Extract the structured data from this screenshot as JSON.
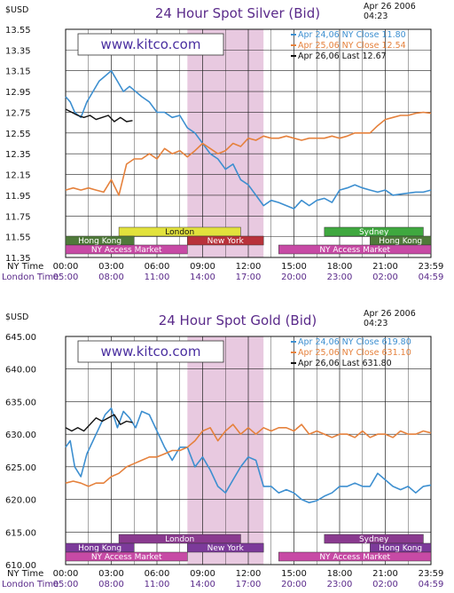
{
  "chart_data": [
    {
      "id": "silver",
      "type": "line",
      "title": "24 Hour Spot Silver (Bid)",
      "currency_label": "$USD",
      "date_line1": "Apr 26 2006",
      "date_line2": "04:23",
      "watermark": "www.kitco.com",
      "ylim": [
        11.35,
        13.55
      ],
      "y_ticks": [
        "13.55",
        "13.35",
        "13.15",
        "12.95",
        "12.75",
        "12.55",
        "12.35",
        "12.15",
        "11.95",
        "11.75",
        "11.55",
        "11.35"
      ],
      "xlim": [
        0,
        24
      ],
      "x_row_labels": [
        "NY Time",
        "London Time"
      ],
      "ny_ticks": [
        "00:00",
        "03:00",
        "06:00",
        "09:00",
        "12:00",
        "15:00",
        "18:00",
        "21:00",
        "23:59"
      ],
      "london_ticks": [
        "05:00",
        "08:00",
        "11:00",
        "14:00",
        "17:00",
        "20:00",
        "23:00",
        "02:00",
        "04:59"
      ],
      "shaded_window": [
        8,
        13
      ],
      "colors": {
        "apr24": "#3d8fd0",
        "apr25": "#e5813c",
        "apr26": "#111111",
        "shade": "#e8c9e0"
      },
      "series": [
        {
          "key": "apr24",
          "name": "Apr 24,06 NY Close 11.80",
          "x": [
            0,
            0.3,
            0.6,
            1,
            1.4,
            1.8,
            2.2,
            2.6,
            3,
            3.4,
            3.8,
            4.2,
            4.6,
            5,
            5.5,
            6,
            6.5,
            7,
            7.5,
            8,
            8.5,
            9,
            9.5,
            10,
            10.5,
            11,
            11.5,
            12,
            12.5,
            13,
            13.5,
            14,
            14.5,
            15,
            15.5,
            16,
            16.5,
            17,
            17.5,
            18,
            18.5,
            19,
            19.5,
            20,
            20.5,
            21,
            21.5,
            22,
            22.5,
            23,
            23.5,
            24
          ],
          "y": [
            12.9,
            12.85,
            12.75,
            12.7,
            12.85,
            12.95,
            13.05,
            13.1,
            13.15,
            13.05,
            12.95,
            13.0,
            12.95,
            12.9,
            12.85,
            12.75,
            12.75,
            12.7,
            12.72,
            12.6,
            12.55,
            12.45,
            12.35,
            12.3,
            12.2,
            12.25,
            12.1,
            12.05,
            11.95,
            11.85,
            11.9,
            11.88,
            11.85,
            11.82,
            11.9,
            11.85,
            11.9,
            11.92,
            11.88,
            12.0,
            12.02,
            12.05,
            12.02,
            12.0,
            11.98,
            12.0,
            11.95,
            11.96,
            11.97,
            11.98,
            11.98,
            12.0
          ]
        },
        {
          "key": "apr25",
          "name": "Apr 25,06 NY Close 12.54",
          "x": [
            0,
            0.5,
            1,
            1.5,
            2,
            2.5,
            3,
            3.5,
            4,
            4.5,
            5,
            5.5,
            6,
            6.5,
            7,
            7.5,
            8,
            8.5,
            9,
            9.5,
            10,
            10.5,
            11,
            11.5,
            12,
            12.5,
            13,
            13.5,
            14,
            14.5,
            15,
            15.5,
            16,
            16.5,
            17,
            17.5,
            18,
            18.5,
            19,
            19.5,
            20,
            20.5,
            21,
            21.5,
            22,
            22.5,
            23,
            23.5,
            24
          ],
          "y": [
            12.0,
            12.02,
            12.0,
            12.02,
            12.0,
            11.98,
            12.1,
            11.95,
            12.25,
            12.3,
            12.3,
            12.35,
            12.3,
            12.4,
            12.35,
            12.38,
            12.32,
            12.38,
            12.45,
            12.4,
            12.35,
            12.38,
            12.45,
            12.42,
            12.5,
            12.48,
            12.52,
            12.5,
            12.5,
            12.52,
            12.5,
            12.48,
            12.5,
            12.5,
            12.5,
            12.52,
            12.5,
            12.52,
            12.55,
            12.55,
            12.55,
            12.62,
            12.68,
            12.7,
            12.72,
            12.72,
            12.74,
            12.75,
            12.74
          ]
        },
        {
          "key": "apr26",
          "name": "Apr 26,06 Last 12.67",
          "x": [
            0,
            0.4,
            0.8,
            1.2,
            1.6,
            2.0,
            2.4,
            2.8,
            3.2,
            3.6,
            4.0,
            4.4
          ],
          "y": [
            12.78,
            12.75,
            12.72,
            12.7,
            12.72,
            12.68,
            12.7,
            12.72,
            12.66,
            12.7,
            12.66,
            12.67
          ]
        }
      ],
      "bars": [
        {
          "label": "London",
          "start": 3.5,
          "end": 11.5,
          "row": 0,
          "color": "#e2e23c",
          "text": "#111111"
        },
        {
          "label": "Sydney",
          "start": 17,
          "end": 23.5,
          "row": 0,
          "color": "#3fa83f",
          "text": "#ffffff"
        },
        {
          "label": "Hong Kong",
          "start": 0,
          "end": 4.5,
          "row": 1,
          "color": "#4f7a3a",
          "text": "#ffffff"
        },
        {
          "label": "New York",
          "start": 8,
          "end": 13,
          "row": 1,
          "color": "#b8323a",
          "text": "#ffffff"
        },
        {
          "label": "Hong Kong",
          "start": 20,
          "end": 24,
          "row": 1,
          "color": "#4f7a3a",
          "text": "#ffffff"
        },
        {
          "label": "NY Access Market",
          "start": 0,
          "end": 8,
          "row": 2,
          "color": "#c74aa5",
          "text": "#ffffff"
        },
        {
          "label": "NY Access Market",
          "start": 14,
          "end": 24,
          "row": 2,
          "color": "#c74aa5",
          "text": "#ffffff"
        }
      ]
    },
    {
      "id": "gold",
      "type": "line",
      "title": "24 Hour Spot Gold (Bid)",
      "currency_label": "$USD",
      "date_line1": "Apr 26 2006",
      "date_line2": "04:23",
      "watermark": "www.kitco.com",
      "ylim": [
        610.0,
        645.0
      ],
      "y_ticks": [
        "645.00",
        "640.00",
        "635.00",
        "630.00",
        "625.00",
        "620.00",
        "615.00",
        "610.00"
      ],
      "xlim": [
        0,
        24
      ],
      "x_row_labels": [
        "NY Time",
        "London Time"
      ],
      "ny_ticks": [
        "00:00",
        "03:00",
        "06:00",
        "09:00",
        "12:00",
        "15:00",
        "18:00",
        "21:00",
        "23:59"
      ],
      "london_ticks": [
        "05:00",
        "08:00",
        "11:00",
        "14:00",
        "17:00",
        "20:00",
        "23:00",
        "02:00",
        "04:59"
      ],
      "shaded_window": [
        8,
        13
      ],
      "colors": {
        "apr24": "#3d8fd0",
        "apr25": "#e5813c",
        "apr26": "#111111",
        "shade": "#e8c9e0"
      },
      "series": [
        {
          "key": "apr24",
          "name": "Apr 24,06 NY Close 619.80",
          "x": [
            0,
            0.3,
            0.6,
            1,
            1.4,
            1.8,
            2.2,
            2.6,
            3,
            3.4,
            3.8,
            4.2,
            4.6,
            5,
            5.5,
            6,
            6.5,
            7,
            7.5,
            8,
            8.5,
            9,
            9.5,
            10,
            10.5,
            11,
            11.5,
            12,
            12.5,
            13,
            13.5,
            14,
            14.5,
            15,
            15.5,
            16,
            16.5,
            17,
            17.5,
            18,
            18.5,
            19,
            19.5,
            20,
            20.5,
            21,
            21.5,
            22,
            22.5,
            23,
            23.5,
            24
          ],
          "y": [
            628.0,
            629.0,
            625.0,
            623.5,
            627.0,
            629.0,
            631.0,
            633.0,
            634.0,
            631.0,
            633.5,
            632.5,
            631.0,
            633.5,
            633.0,
            630.5,
            628.0,
            626.0,
            628.0,
            628.0,
            625.0,
            626.5,
            624.5,
            622.0,
            621.0,
            623.0,
            625.0,
            626.5,
            626.0,
            622.0,
            622.0,
            621.0,
            621.5,
            621.0,
            620.0,
            619.5,
            619.8,
            620.5,
            621.0,
            622.0,
            622.0,
            622.5,
            622.0,
            622.0,
            624.0,
            623.0,
            622.0,
            621.5,
            622.0,
            621.0,
            622.0,
            622.2
          ]
        },
        {
          "key": "apr25",
          "name": "Apr 25,06 NY Close 631.10",
          "x": [
            0,
            0.5,
            1,
            1.5,
            2,
            2.5,
            3,
            3.5,
            4,
            4.5,
            5,
            5.5,
            6,
            6.5,
            7,
            7.5,
            8,
            8.5,
            9,
            9.5,
            10,
            10.5,
            11,
            11.5,
            12,
            12.5,
            13,
            13.5,
            14,
            14.5,
            15,
            15.5,
            16,
            16.5,
            17,
            17.5,
            18,
            18.5,
            19,
            19.5,
            20,
            20.5,
            21,
            21.5,
            22,
            22.5,
            23,
            23.5,
            24
          ],
          "y": [
            622.5,
            622.8,
            622.5,
            622.0,
            622.5,
            622.5,
            623.5,
            624.0,
            625.0,
            625.5,
            626.0,
            626.5,
            626.5,
            627.0,
            627.5,
            627.5,
            628.0,
            629.0,
            630.5,
            631.0,
            629.0,
            630.5,
            631.5,
            630.0,
            631.0,
            630.0,
            631.0,
            630.5,
            631.0,
            631.0,
            630.5,
            631.5,
            630.0,
            630.5,
            630.0,
            629.5,
            630.0,
            630.0,
            629.5,
            630.5,
            629.5,
            630.0,
            630.0,
            629.5,
            630.5,
            630.0,
            630.0,
            630.5,
            630.2
          ]
        },
        {
          "key": "apr26",
          "name": "Apr 26,06 Last 631.80",
          "x": [
            0,
            0.4,
            0.8,
            1.2,
            1.6,
            2.0,
            2.4,
            2.8,
            3.2,
            3.6,
            4.0,
            4.4
          ],
          "y": [
            631.0,
            630.5,
            631.0,
            630.5,
            631.5,
            632.5,
            632.0,
            632.5,
            633.0,
            631.5,
            632.0,
            631.8
          ]
        }
      ],
      "bars": [
        {
          "label": "London",
          "start": 3.5,
          "end": 11.5,
          "row": 0,
          "color": "#8a3a8f",
          "text": "#ffffff"
        },
        {
          "label": "Sydney",
          "start": 17,
          "end": 23.5,
          "row": 0,
          "color": "#8a3a8f",
          "text": "#ffffff"
        },
        {
          "label": "Hong Kong",
          "start": 0,
          "end": 4.5,
          "row": 1,
          "color": "#7c3a9a",
          "text": "#ffffff"
        },
        {
          "label": "New York",
          "start": 8,
          "end": 13,
          "row": 1,
          "color": "#7c3a9a",
          "text": "#ffffff"
        },
        {
          "label": "Hong Kong",
          "start": 20,
          "end": 24,
          "row": 1,
          "color": "#7c3a9a",
          "text": "#ffffff"
        },
        {
          "label": "NY Access Market",
          "start": 0,
          "end": 8,
          "row": 2,
          "color": "#c74aa5",
          "text": "#ffffff"
        },
        {
          "label": "NY Access Market",
          "start": 14,
          "end": 24,
          "row": 2,
          "color": "#c74aa5",
          "text": "#ffffff"
        }
      ]
    }
  ]
}
